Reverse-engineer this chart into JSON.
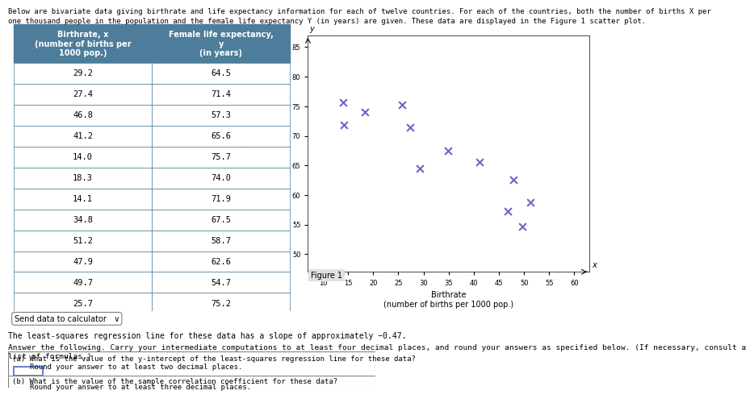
{
  "x_data": [
    29.2,
    27.4,
    46.8,
    41.2,
    14.0,
    18.3,
    14.1,
    34.8,
    51.2,
    47.9,
    49.7,
    25.7
  ],
  "y_data": [
    64.5,
    71.4,
    57.3,
    65.6,
    75.7,
    74.0,
    71.9,
    67.5,
    58.7,
    62.6,
    54.7,
    75.2
  ],
  "scatter_color": "#6666cc",
  "scatter_marker": "x",
  "scatter_size": 40,
  "xlabel": "Birthrate\n(number of births per 1000 pop.)",
  "ylabel": "Female life expectancy\n(in years)",
  "xlim": [
    7,
    63
  ],
  "ylim": [
    47,
    87
  ],
  "xticks": [
    10,
    15,
    20,
    25,
    30,
    35,
    40,
    45,
    50,
    55,
    60
  ],
  "yticks": [
    50,
    55,
    60,
    65,
    70,
    75,
    80,
    85
  ],
  "figure_label": "Figure 1",
  "col1_header": "Birthrate, x\n(number of births per\n1000 pop.)",
  "col2_header": "Female life expectancy,\ny\n(in years)",
  "header_bg": "#4d7d9a",
  "header_fg": "#ffffff",
  "table_border": "#4d7d9a",
  "row_bg": "#ffffff",
  "alt_row_bg": "#ffffff",
  "text_color": "#000000",
  "title_text": "Below are bivariate data giving birthrate and life expectancy information for each of twelve countries. For each of the countries, both the number of births X per\none thousand people in the population and the female life expectancy Y (in years) are given. These data are displayed in the Figure 1 scatter plot.",
  "slope_text": "The least-squares regression line for these data has a slope of approximately −0.47.",
  "instruction_text": "Answer the following. Carry your intermediate computations to at least four decimal places, and round your answers as specified below. (If necessary, consult a\nlist of formulas.)",
  "qa_text_a": "(a) What is the value of the y-intercept of the least-squares regression line for these data?\n    Round your answer to at least two decimal places.",
  "qa_text_b": "(b) What is the value of the sample correlation coefficient for these data?\n    Round your answer to at least three decimal places."
}
